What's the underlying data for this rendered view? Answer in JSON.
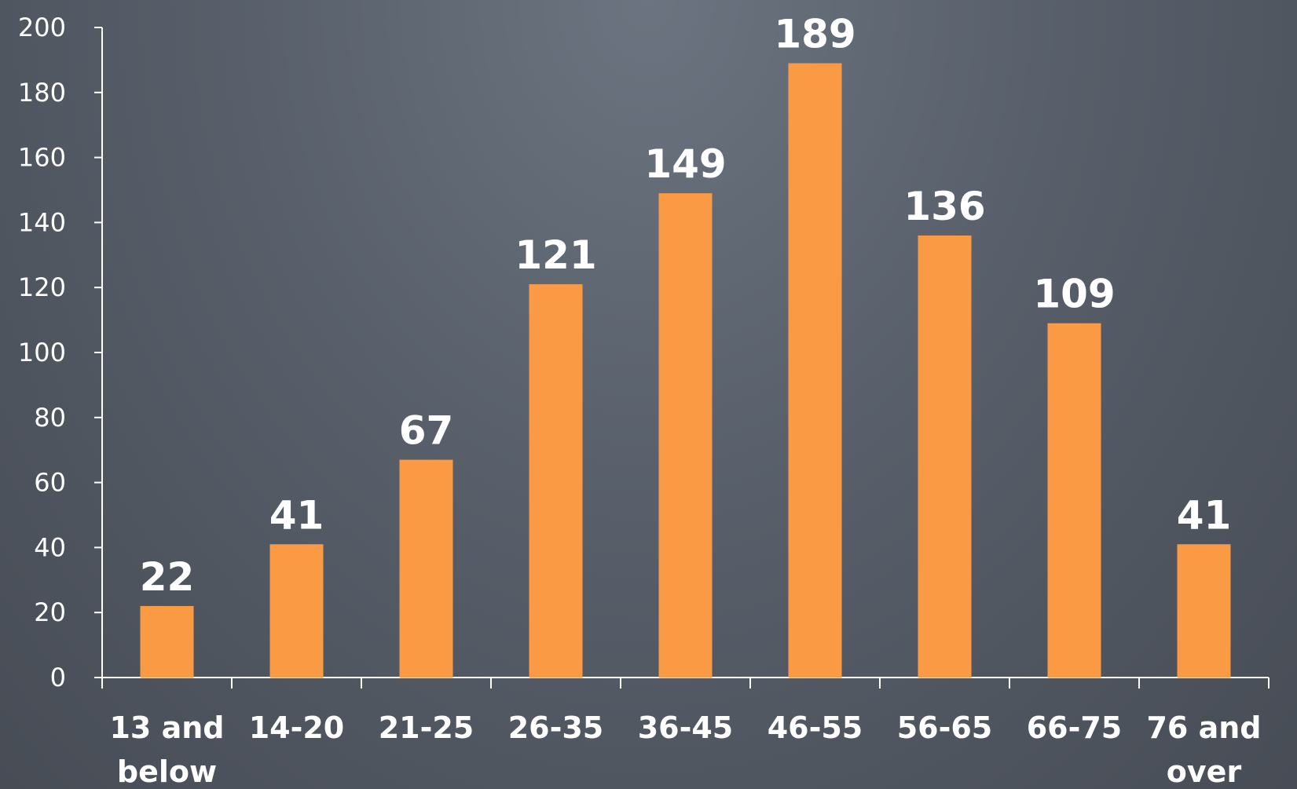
{
  "chart_data": {
    "type": "bar",
    "categories": [
      [
        "13 and",
        "below"
      ],
      [
        "14-20"
      ],
      [
        "21-25"
      ],
      [
        "26-35"
      ],
      [
        "36-45"
      ],
      [
        "46-55"
      ],
      [
        "56-65"
      ],
      [
        "66-75"
      ],
      [
        "76 and",
        "over"
      ]
    ],
    "values": [
      22,
      41,
      67,
      121,
      149,
      189,
      136,
      109,
      41
    ],
    "data_labels": [
      "22",
      "41",
      "67",
      "121",
      "149",
      "189",
      "136",
      "109",
      "41"
    ],
    "y_ticks": [
      "0",
      "20",
      "40",
      "60",
      "80",
      "100",
      "120",
      "140",
      "160",
      "180",
      "200"
    ],
    "ylim": [
      0,
      200
    ],
    "title": "",
    "xlabel": "",
    "ylabel": "",
    "grid": false,
    "legend": "none",
    "colors": {
      "bar": "#fb9a45",
      "axis": "#ffffff",
      "text": "#ffffff"
    }
  }
}
